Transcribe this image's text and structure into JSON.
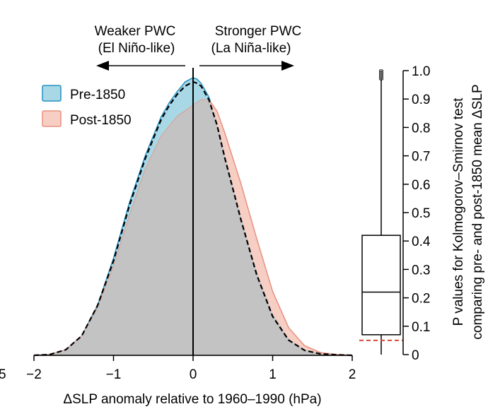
{
  "chart_data": [
    {
      "type": "area",
      "kind": "density",
      "xlabel": "ΔSLP anomaly relative to 1960–1990 (hPa)",
      "xlim": [
        -2.5,
        2
      ],
      "xticks": [
        -2,
        -1,
        0,
        1,
        2
      ],
      "xtick_labels": [
        "−2",
        "−1",
        "0",
        "1",
        "2"
      ],
      "left_edge_label": "5",
      "annotations": {
        "left_line1": "Weaker PWC",
        "left_line2": "(El Niño-like)",
        "right_line1": "Stronger PWC",
        "right_line2": "(La Niña-like)"
      },
      "legend": "top-left",
      "zero_line": 0,
      "series": [
        {
          "name": "Pre-1850",
          "fill": "#a8d8e6",
          "stroke": "#2590c0",
          "x": [
            -2.0,
            -1.8,
            -1.6,
            -1.4,
            -1.2,
            -1.0,
            -0.8,
            -0.6,
            -0.4,
            -0.3,
            -0.2,
            -0.1,
            0.0,
            0.05,
            0.1,
            0.2,
            0.3,
            0.4,
            0.6,
            0.8,
            1.0,
            1.2,
            1.4,
            1.6,
            1.8,
            2.0
          ],
          "y": [
            0.0,
            0.003,
            0.02,
            0.07,
            0.18,
            0.35,
            0.55,
            0.72,
            0.86,
            0.91,
            0.95,
            0.985,
            1.0,
            0.995,
            0.98,
            0.93,
            0.84,
            0.72,
            0.5,
            0.3,
            0.15,
            0.06,
            0.02,
            0.006,
            0.002,
            0.0
          ]
        },
        {
          "name": "Post-1850",
          "fill": "#f6cec4",
          "stroke": "#e8907e",
          "x": [
            -2.0,
            -1.8,
            -1.6,
            -1.4,
            -1.2,
            -1.0,
            -0.8,
            -0.6,
            -0.4,
            -0.2,
            0.0,
            0.1,
            0.2,
            0.3,
            0.4,
            0.6,
            0.8,
            1.0,
            1.2,
            1.4,
            1.6,
            1.8,
            2.0
          ],
          "y": [
            0.0,
            0.003,
            0.02,
            0.07,
            0.17,
            0.32,
            0.5,
            0.67,
            0.79,
            0.86,
            0.9,
            0.92,
            0.92,
            0.88,
            0.8,
            0.62,
            0.42,
            0.23,
            0.1,
            0.035,
            0.01,
            0.003,
            0.0
          ]
        },
        {
          "name": "",
          "role": "dashed-reference",
          "stroke": "#000000",
          "x": [
            -2.0,
            -1.8,
            -1.6,
            -1.4,
            -1.2,
            -1.0,
            -0.8,
            -0.6,
            -0.4,
            -0.3,
            -0.2,
            -0.1,
            0.0,
            0.05,
            0.1,
            0.2,
            0.3,
            0.4,
            0.6,
            0.8,
            1.0,
            1.2,
            1.4,
            1.6,
            1.8,
            2.0
          ],
          "y": [
            0.0,
            0.003,
            0.02,
            0.07,
            0.18,
            0.34,
            0.54,
            0.71,
            0.85,
            0.9,
            0.94,
            0.97,
            0.985,
            0.98,
            0.97,
            0.92,
            0.83,
            0.71,
            0.49,
            0.29,
            0.14,
            0.055,
            0.018,
            0.005,
            0.002,
            0.0
          ]
        }
      ]
    },
    {
      "type": "box",
      "ylabel_line1": "P values for Kolmogorov–Smirnov test",
      "ylabel_line2": "comparing pre- and post-1850 mean ΔSLP",
      "ylim": [
        0,
        1
      ],
      "yticks": [
        0,
        0.1,
        0.2,
        0.3,
        0.4,
        0.5,
        0.6,
        0.7,
        0.8,
        0.9,
        1.0
      ],
      "ytick_labels": [
        "0",
        "0.1",
        "0.2",
        "0.3",
        "0.4",
        "0.5",
        "0.6",
        "0.7",
        "0.8",
        "0.9",
        "1.0"
      ],
      "box": {
        "q1": 0.07,
        "median": 0.22,
        "q3": 0.42,
        "whisker_low": 0.0,
        "whisker_high": 0.97,
        "outlier_top": 1.0
      },
      "reference_line": 0.05,
      "reference_color": "#d9473a"
    }
  ]
}
